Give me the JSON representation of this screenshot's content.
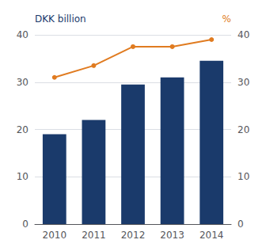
{
  "chart_data": {
    "type": "bar",
    "categories": [
      "2010",
      "2011",
      "2012",
      "2013",
      "2014"
    ],
    "series": [
      {
        "type": "bar",
        "color": "#1a3a6b",
        "values": [
          19.0,
          22.0,
          29.5,
          31.0,
          34.5
        ]
      },
      {
        "type": "line",
        "color": "#e07b20",
        "marker": "circle",
        "axis": "y2",
        "values": [
          31.0,
          33.5,
          37.5,
          37.5,
          39.0
        ]
      }
    ],
    "ylabel": "DKK billion",
    "y2label": "%",
    "ylim": [
      0,
      40
    ],
    "yticks": [
      0,
      10,
      20,
      30,
      40
    ],
    "y2lim": [
      0,
      40
    ],
    "y2ticks": [
      0,
      10,
      20,
      30,
      40
    ],
    "grid": true
  }
}
